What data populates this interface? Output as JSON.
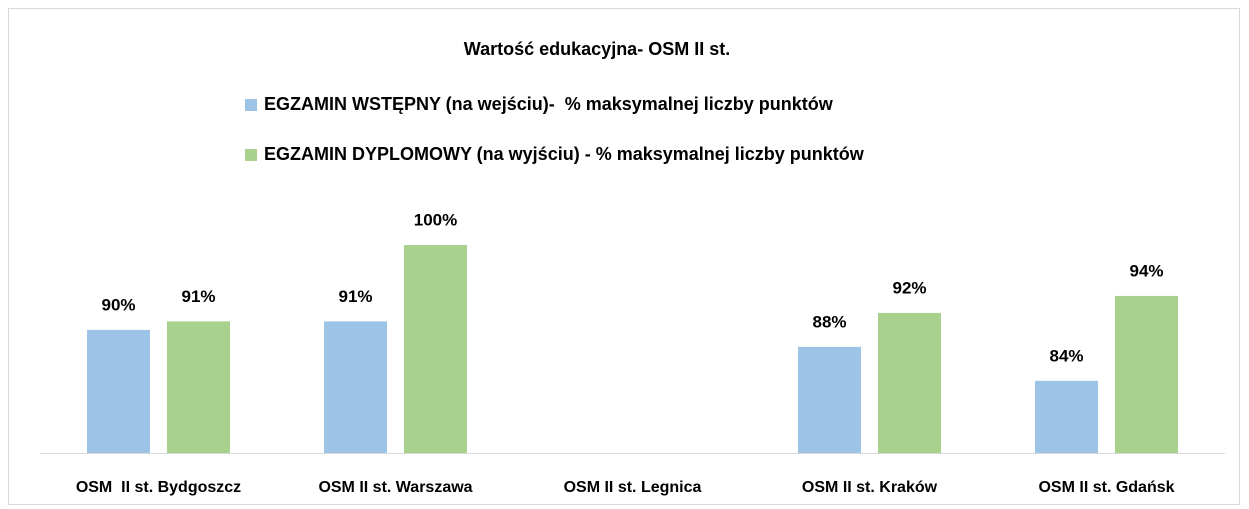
{
  "chart_data": {
    "type": "bar",
    "title": "Wartość edukacyjna- OSM II st.",
    "categories": [
      "OSM  II st. Bydgoszcz",
      "OSM II st. Warszawa",
      "OSM II st. Legnica",
      "OSM II st. Kraków",
      "OSM II st. Gdańsk"
    ],
    "series": [
      {
        "name": "EGZAMIN WSTĘPNY (na wejściu)-  % maksymalnej liczby punktów",
        "color": "#9dc3e6",
        "values": [
          90,
          91,
          null,
          88,
          84
        ],
        "value_labels": [
          "90%",
          "91%",
          null,
          "88%",
          "84%"
        ]
      },
      {
        "name": "EGZAMIN DYPLOMOWY (na wyjściu) - % maksymalnej liczby punktów",
        "color": "#a9d18e",
        "values": [
          91,
          100,
          null,
          92,
          94
        ],
        "value_labels": [
          "91%",
          "100%",
          null,
          "92%",
          "94%"
        ]
      }
    ],
    "ylim": [
      75.5,
      100
    ]
  }
}
